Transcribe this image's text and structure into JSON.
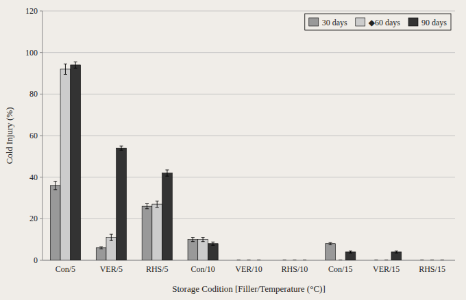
{
  "chart_data": {
    "type": "bar",
    "xlabel": "Storage Codition [Filler/Temperature  (°C)]",
    "ylabel": "Cold Injury (%)",
    "categories": [
      "Con/5",
      "VER/5",
      "RHS/5",
      "Con/10",
      "VER/10",
      "RHS/10",
      "Con/15",
      "VER/15",
      "RHS/15"
    ],
    "series": [
      {
        "name": "30 days",
        "color": "#999999",
        "values": [
          36,
          6,
          26,
          10,
          0,
          0,
          8,
          0,
          0
        ],
        "errors": [
          2.0,
          0.5,
          1.2,
          1.0,
          0,
          0,
          0.5,
          0,
          0
        ]
      },
      {
        "name": "◆60 days",
        "color": "#cccccc",
        "values": [
          92,
          11,
          27,
          10,
          0,
          0,
          0,
          0,
          0
        ],
        "errors": [
          2.5,
          1.5,
          1.5,
          1.0,
          0,
          0,
          0,
          0,
          0
        ]
      },
      {
        "name": "90 days",
        "color": "#333333",
        "values": [
          94,
          54,
          42,
          8,
          0,
          0,
          4,
          4,
          0
        ],
        "errors": [
          1.5,
          1.0,
          1.5,
          0.8,
          0,
          0,
          0.5,
          0.5,
          0
        ]
      }
    ],
    "ylim": [
      0,
      120
    ],
    "yticks": [
      0,
      20,
      40,
      60,
      80,
      100,
      120
    ],
    "grid": true,
    "legend": "upper right"
  }
}
